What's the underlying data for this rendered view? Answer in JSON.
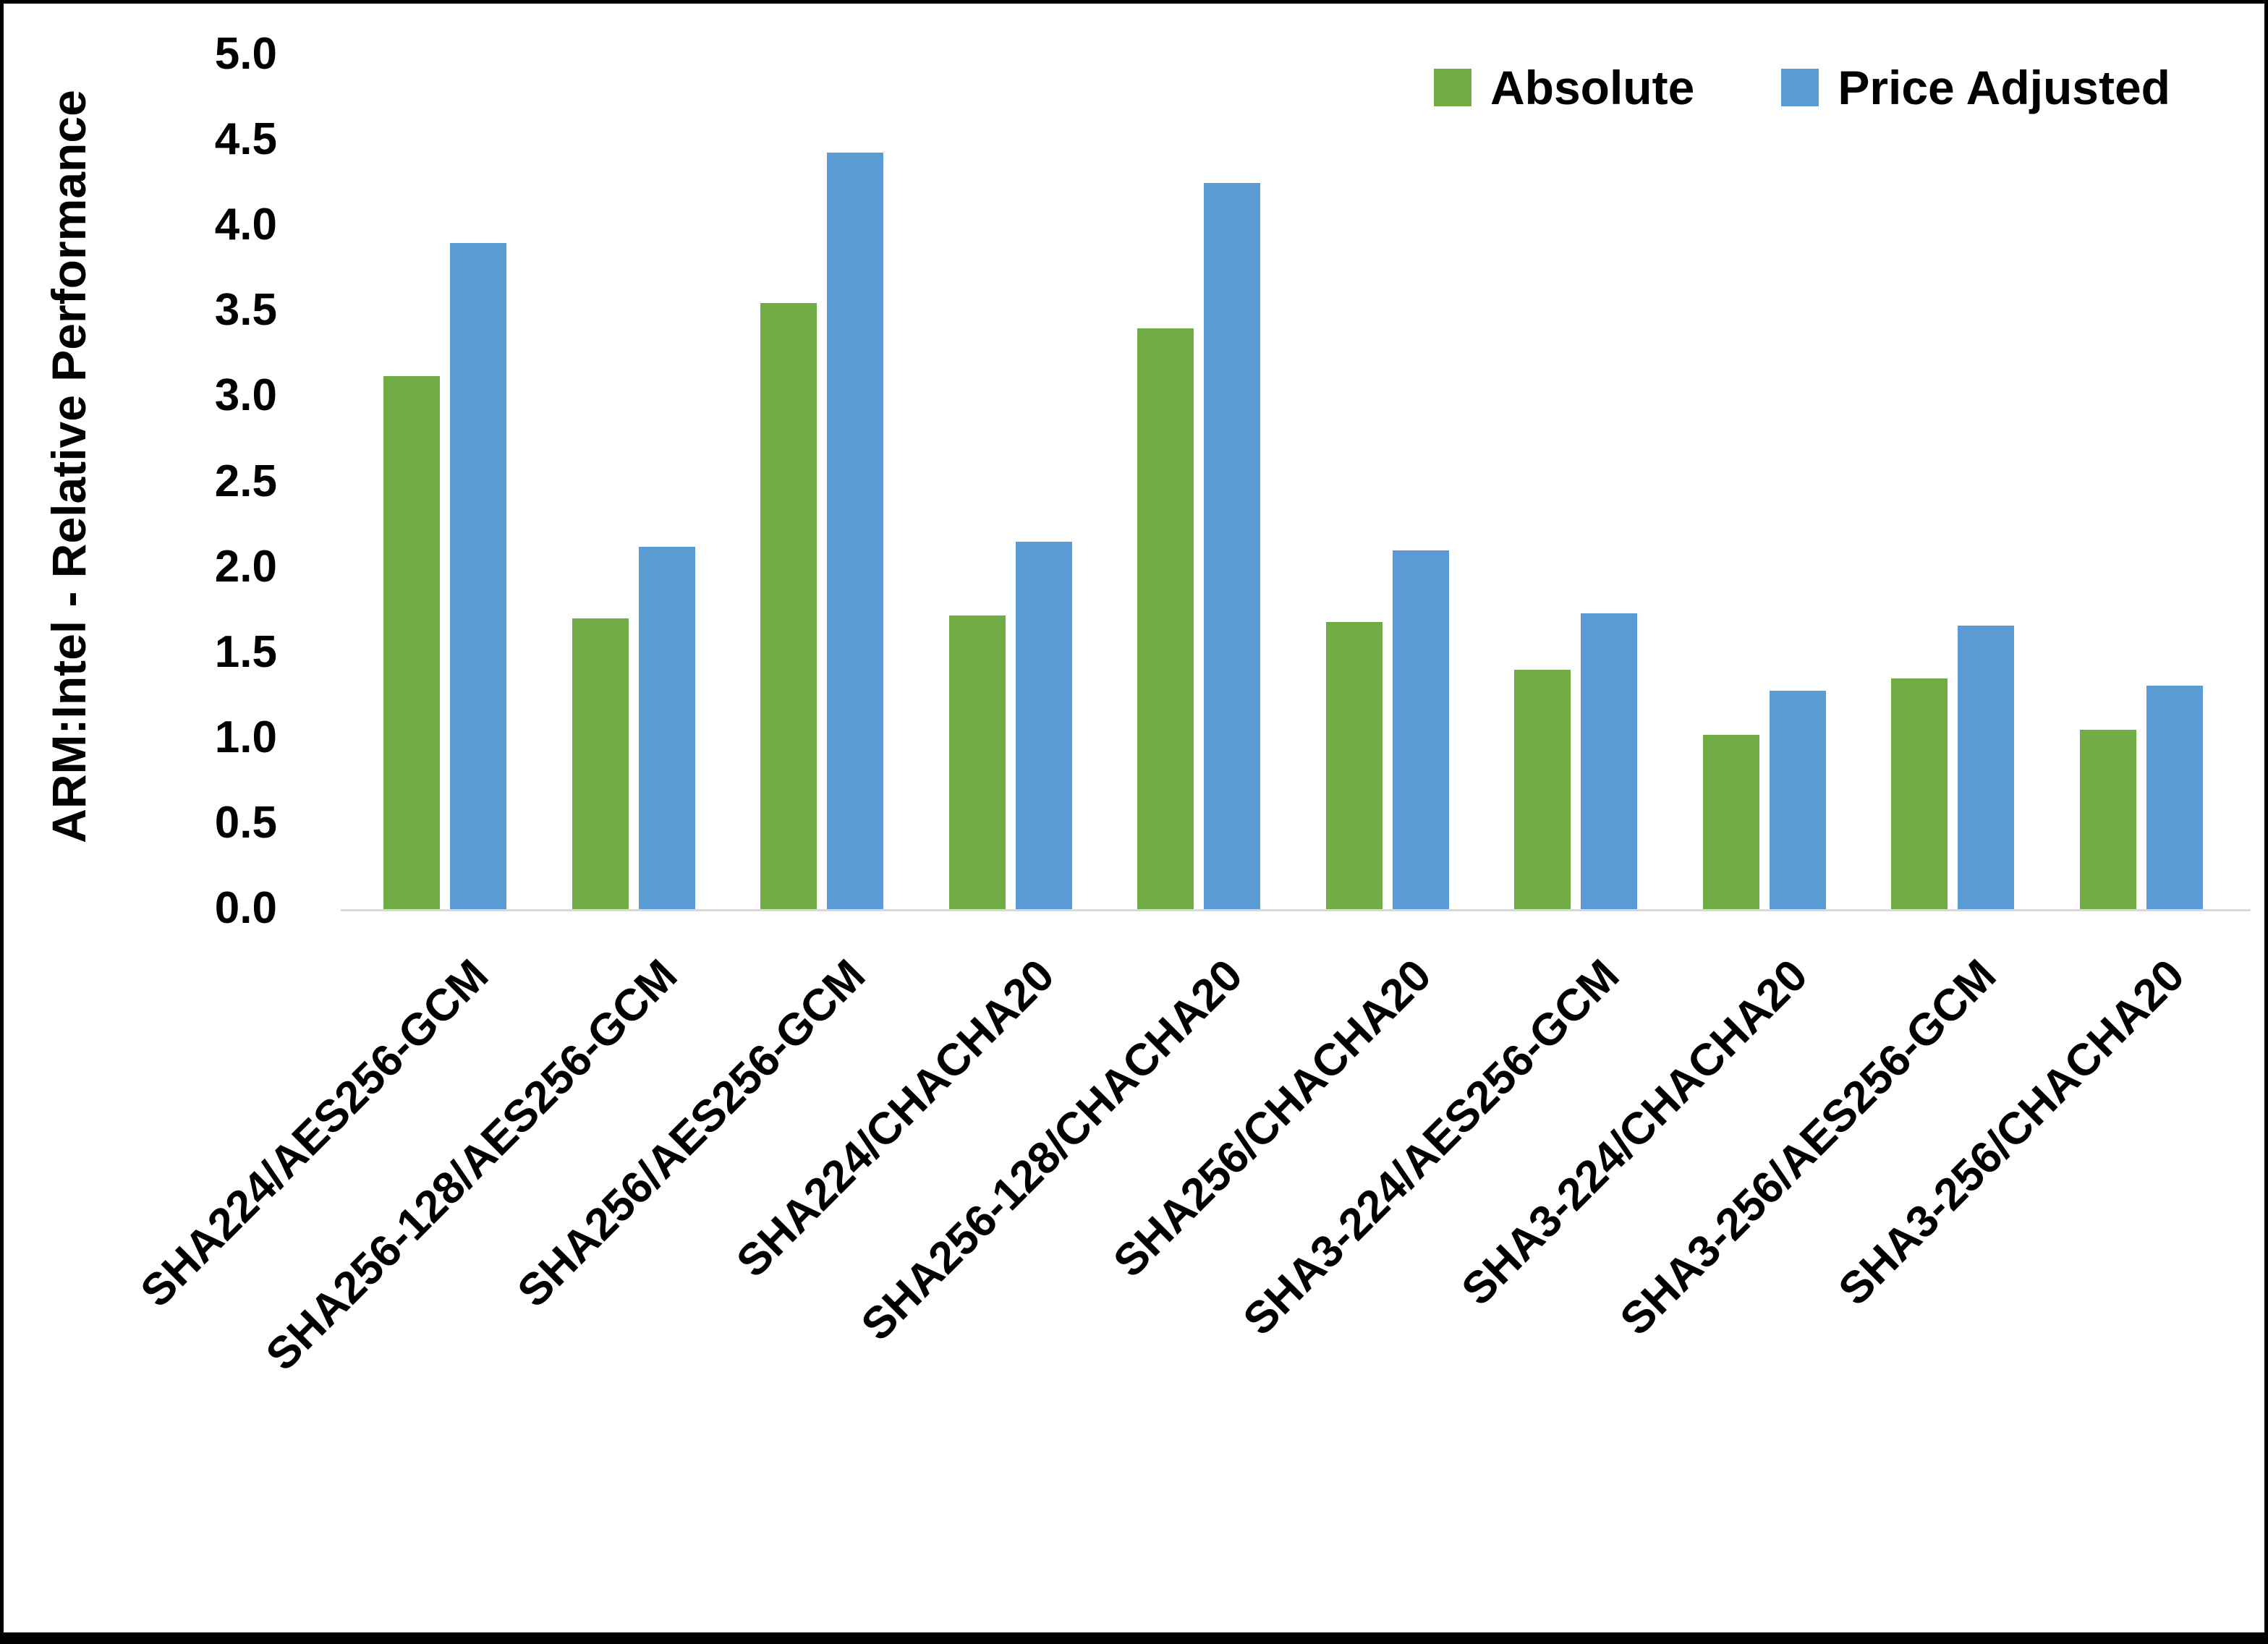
{
  "chart_data": {
    "type": "bar",
    "title": "",
    "xlabel": "",
    "ylabel": "ARM:Intel - Relative Performance",
    "ylim": [
      0,
      5
    ],
    "ytick_step": 0.5,
    "ytick_labels": [
      "0.0",
      "0.5",
      "1.0",
      "1.5",
      "2.0",
      "2.5",
      "3.0",
      "3.5",
      "4.0",
      "4.5",
      "5.0"
    ],
    "grid": false,
    "legend_position": "top-right",
    "categories": [
      "SHA224/AES256-GCM",
      "SHA256-128/AES256-GCM",
      "SHA256/AES256-GCM",
      "SHA224/CHACHA20",
      "SHA256-128/CHACHA20",
      "SHA256/CHACHA20",
      "SHA3-224/AES256-GCM",
      "SHA3-224/CHACHA20",
      "SHA3-256/AES256-GCM",
      "SHA3-256/CHACHA20"
    ],
    "series": [
      {
        "name": "Absolute",
        "color": "#70AD47",
        "values": [
          3.12,
          1.7,
          3.55,
          1.72,
          3.4,
          1.68,
          1.4,
          1.02,
          1.35,
          1.05
        ]
      },
      {
        "name": "Price Adjusted",
        "color": "#5B9BD5",
        "values": [
          3.9,
          2.12,
          4.43,
          2.15,
          4.25,
          2.1,
          1.73,
          1.28,
          1.66,
          1.31
        ]
      }
    ]
  }
}
